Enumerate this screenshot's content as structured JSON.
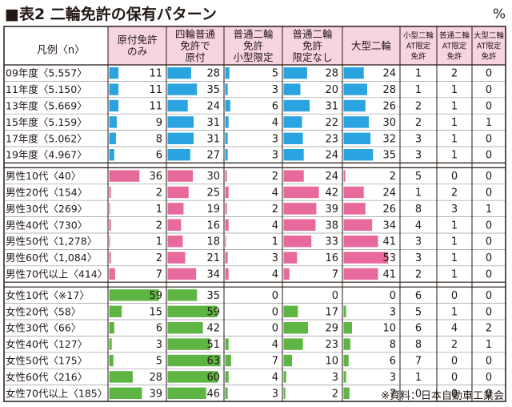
{
  "title": "■表2 二輪免許の保有パターン",
  "unit": "%",
  "source": "※資料：日本自動車工業会",
  "colors": {
    "header_bg": "#f7d4e2",
    "blue": "#2aa4e0",
    "pink": "#e8699b",
    "green": "#5fb544",
    "border": "#231815",
    "grid": "#9a9a9a"
  },
  "chart_data": {
    "type": "table",
    "legend_label": "凡例〈n〉",
    "columns": [
      {
        "label": "原付免許\nのみ",
        "kind": "bar"
      },
      {
        "label": "四輪普通\n免許で\n原付",
        "kind": "bar"
      },
      {
        "label": "普通二輪\n免許\n小型限定",
        "kind": "bar"
      },
      {
        "label": "普通二輪\n免許\n限定なし",
        "kind": "bar"
      },
      {
        "label": "大型二輪",
        "kind": "bar"
      },
      {
        "label": "小型二輪\nAT限定\n免許",
        "kind": "num"
      },
      {
        "label": "普通二輪\nAT限定\n免許",
        "kind": "num"
      },
      {
        "label": "大型二輪\nAT限定\n免許",
        "kind": "num"
      }
    ],
    "groups": [
      {
        "color": "blue",
        "rows": [
          {
            "label": "09年度〈5.557〉",
            "values": [
              11,
              28,
              5,
              28,
              24,
              1,
              2,
              0
            ]
          },
          {
            "label": "11年度〈5.150〉",
            "values": [
              11,
              35,
              3,
              20,
              28,
              1,
              1,
              0
            ]
          },
          {
            "label": "13年度〈5.669〉",
            "values": [
              11,
              24,
              6,
              31,
              26,
              2,
              1,
              0
            ]
          },
          {
            "label": "15年度〈5.159〉",
            "values": [
              9,
              31,
              4,
              22,
              30,
              2,
              1,
              1
            ]
          },
          {
            "label": "17年度〈5.062〉",
            "values": [
              8,
              31,
              3,
              23,
              32,
              3,
              1,
              0
            ]
          },
          {
            "label": "19年度〈4.967〉",
            "values": [
              6,
              27,
              3,
              24,
              35,
              3,
              1,
              0
            ]
          }
        ]
      },
      {
        "color": "pink",
        "rows": [
          {
            "label": "男性10代〈40〉",
            "values": [
              36,
              30,
              2,
              24,
              2,
              5,
              0,
              0
            ]
          },
          {
            "label": "男性20代〈154〉",
            "values": [
              2,
              25,
              4,
              42,
              24,
              1,
              2,
              0
            ]
          },
          {
            "label": "男性30代〈269〉",
            "values": [
              1,
              19,
              2,
              39,
              26,
              8,
              3,
              1
            ]
          },
          {
            "label": "男性40代〈730〉",
            "values": [
              2,
              16,
              4,
              38,
              34,
              4,
              1,
              0
            ]
          },
          {
            "label": "男性50代〈1,278〉",
            "values": [
              1,
              18,
              1,
              33,
              41,
              3,
              1,
              0
            ]
          },
          {
            "label": "男性60代〈1,084〉",
            "values": [
              2,
              21,
              3,
              16,
              53,
              3,
              1,
              0
            ]
          },
          {
            "label": "男性70代以上〈414〉",
            "values": [
              7,
              34,
              4,
              7,
              41,
              2,
              1,
              0
            ]
          }
        ]
      },
      {
        "color": "green",
        "rows": [
          {
            "label": "女性10代〈※17〉",
            "values": [
              59,
              35,
              0,
              0,
              0,
              6,
              0,
              0
            ]
          },
          {
            "label": "女性20代〈58〉",
            "values": [
              15,
              59,
              0,
              17,
              3,
              5,
              1,
              0
            ]
          },
          {
            "label": "女性30代〈66〉",
            "values": [
              6,
              42,
              0,
              29,
              10,
              6,
              4,
              2
            ]
          },
          {
            "label": "女性40代〈127〉",
            "values": [
              3,
              51,
              4,
              23,
              8,
              8,
              2,
              1
            ]
          },
          {
            "label": "女性50代〈175〉",
            "values": [
              5,
              63,
              7,
              10,
              6,
              7,
              0,
              0
            ]
          },
          {
            "label": "女性60代〈216〉",
            "values": [
              28,
              60,
              4,
              3,
              3,
              1,
              0,
              0
            ]
          },
          {
            "label": "女性70代以上〈185〉",
            "values": [
              39,
              46,
              3,
              2,
              7,
              0,
              0,
              0
            ]
          }
        ]
      }
    ]
  }
}
